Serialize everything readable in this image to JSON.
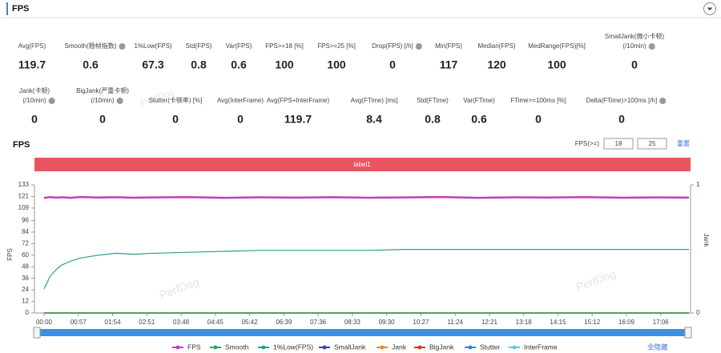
{
  "header": {
    "title": "FPS"
  },
  "stats": [
    {
      "lines": [
        "Avg(FPS)"
      ],
      "value": 119.7
    },
    {
      "lines": [
        "Smooth(稳帧指数)"
      ],
      "value": 0.6,
      "help": true
    },
    {
      "lines": [
        "1%Low(FPS)"
      ],
      "value": 67.3
    },
    {
      "lines": [
        "Std(FPS)"
      ],
      "value": 0.8
    },
    {
      "lines": [
        "Var(FPS)"
      ],
      "value": 0.6
    },
    {
      "lines": [
        "FPS>=18 [%]"
      ],
      "value": 100
    },
    {
      "lines": [
        "FPS>=25 [%]"
      ],
      "value": 100
    },
    {
      "lines": [
        "Drop(FPS) [/h]"
      ],
      "value": 0,
      "help": true
    },
    {
      "lines": [
        "Min(FPS)"
      ],
      "value": 117
    },
    {
      "lines": [
        "Median(FPS)"
      ],
      "value": 120
    },
    {
      "lines": [
        "MedRange(FPS)[%]"
      ],
      "value": 100
    },
    {
      "lines": [
        "SmallJank(微小卡顿)",
        "(/10min)"
      ],
      "value": 0,
      "help": true
    },
    {
      "lines": [
        "Jank(卡顿)",
        "(/10min)"
      ],
      "value": 0,
      "help": true
    },
    {
      "lines": [
        "BigJank(严重卡顿)",
        "(/10min)"
      ],
      "value": 0,
      "help": true
    },
    {
      "lines": [
        "Stutter(卡顿率) [%]"
      ],
      "value": 0
    },
    {
      "lines": [
        "Avg(InterFrame)"
      ],
      "value": 0
    },
    {
      "lines": [
        "Avg(FPS+InterFrame)"
      ],
      "value": 119.7
    },
    {
      "lines": [
        "Avg(FTime) [ms]"
      ],
      "value": 8.4
    },
    {
      "lines": [
        "Std(FTime)"
      ],
      "value": 0.8
    },
    {
      "lines": [
        "Var(FTime)"
      ],
      "value": 0.6
    },
    {
      "lines": [
        "FTime>=100ms [%]"
      ],
      "value": 0
    },
    {
      "lines": [
        "Delta(FTime)>100ms [/h]"
      ],
      "value": 0,
      "help": true
    }
  ],
  "chart_data": {
    "type": "line",
    "title": "FPS",
    "banner": "label1",
    "threshold_label": "FPS(>=)",
    "thresholds": [
      18,
      25
    ],
    "reset": "重置",
    "hide_all": "全隐藏",
    "watermark": "PerfDog",
    "y_label": "FPS",
    "y2_label": "Jank",
    "x": [
      0,
      10,
      20,
      30,
      45,
      60,
      90,
      120,
      150,
      180,
      240,
      300,
      360,
      420,
      480,
      540,
      600,
      660,
      720,
      780,
      840,
      900,
      960,
      1020,
      1073
    ],
    "xlim": [
      0,
      1073
    ],
    "xticks": [
      {
        "value": 0,
        "label": "00:00"
      },
      {
        "value": 57,
        "label": "00:57"
      },
      {
        "value": 114,
        "label": "01:54"
      },
      {
        "value": 171,
        "label": "02:51"
      },
      {
        "value": 228,
        "label": "03:48"
      },
      {
        "value": 285,
        "label": "04:45"
      },
      {
        "value": 342,
        "label": "05:42"
      },
      {
        "value": 399,
        "label": "06:39"
      },
      {
        "value": 456,
        "label": "07:36"
      },
      {
        "value": 513,
        "label": "08:33"
      },
      {
        "value": 570,
        "label": "09:30"
      },
      {
        "value": 627,
        "label": "10:27"
      },
      {
        "value": 684,
        "label": "11:24"
      },
      {
        "value": 741,
        "label": "12:21"
      },
      {
        "value": 798,
        "label": "13:18"
      },
      {
        "value": 855,
        "label": "14:15"
      },
      {
        "value": 912,
        "label": "15:12"
      },
      {
        "value": 969,
        "label": "16:09"
      },
      {
        "value": 1026,
        "label": "17:06"
      }
    ],
    "ylim": [
      0,
      133
    ],
    "yticks": [
      0,
      12,
      24,
      36,
      48,
      60,
      72,
      84,
      96,
      109,
      121,
      133
    ],
    "y2lim": [
      0,
      1
    ],
    "y2ticks": [
      0,
      1
    ],
    "grid": false,
    "series": [
      {
        "name": "FPS",
        "color": "#c23fb5",
        "values": [
          119.5,
          120.3,
          119.8,
          120.1,
          119.6,
          120.4,
          119.9,
          120.2,
          119.7,
          120.0,
          120.3,
          119.6,
          120.1,
          119.8,
          120.2,
          119.7,
          120.0,
          120.4,
          119.6,
          120.1,
          119.9,
          120.3,
          119.7,
          120.0,
          119.8
        ]
      },
      {
        "name": "Smooth",
        "color": "#2fa84f",
        "axis": "y2",
        "values": [
          0,
          0,
          0,
          0,
          0,
          0,
          0,
          0,
          0,
          0,
          0,
          0,
          0,
          0,
          0,
          0,
          0,
          0,
          0,
          0,
          0,
          0,
          0,
          0,
          0
        ]
      },
      {
        "name": "1%Low(FPS)",
        "color": "#2a9d96",
        "values": [
          25,
          38,
          45,
          50,
          54,
          57,
          60,
          62,
          61,
          62,
          63,
          64,
          65,
          65,
          65,
          65,
          66,
          66,
          66,
          66,
          66,
          66,
          66,
          66,
          66
        ]
      },
      {
        "name": "SmallJank",
        "color": "#3b3fa8",
        "axis": "y2",
        "values": [
          0,
          0,
          0,
          0,
          0,
          0,
          0,
          0,
          0,
          0,
          0,
          0,
          0,
          0,
          0,
          0,
          0,
          0,
          0,
          0,
          0,
          0,
          0,
          0,
          0
        ]
      },
      {
        "name": "Jank",
        "color": "#e8862a",
        "axis": "y2",
        "values": [
          0,
          0,
          0,
          0,
          0,
          0,
          0,
          0,
          0,
          0,
          0,
          0,
          0,
          0,
          0,
          0,
          0,
          0,
          0,
          0,
          0,
          0,
          0,
          0,
          0
        ]
      },
      {
        "name": "BigJank",
        "color": "#d9342b",
        "axis": "y2",
        "values": [
          0,
          0,
          0,
          0,
          0,
          0,
          0,
          0,
          0,
          0,
          0,
          0,
          0,
          0,
          0,
          0,
          0,
          0,
          0,
          0,
          0,
          0,
          0,
          0,
          0
        ]
      },
      {
        "name": "Stutter",
        "color": "#3f7fd1",
        "axis": "y2",
        "values": [
          0,
          0,
          0,
          0,
          0,
          0,
          0,
          0,
          0,
          0,
          0,
          0,
          0,
          0,
          0,
          0,
          0,
          0,
          0,
          0,
          0,
          0,
          0,
          0,
          0
        ]
      },
      {
        "name": "InterFrame",
        "color": "#5fc8e0",
        "values": [
          0,
          0,
          0,
          0,
          0,
          0,
          0,
          0,
          0,
          0,
          0,
          0,
          0,
          0,
          0,
          0,
          0,
          0,
          0,
          0,
          0,
          0,
          0,
          0,
          0
        ]
      }
    ]
  }
}
